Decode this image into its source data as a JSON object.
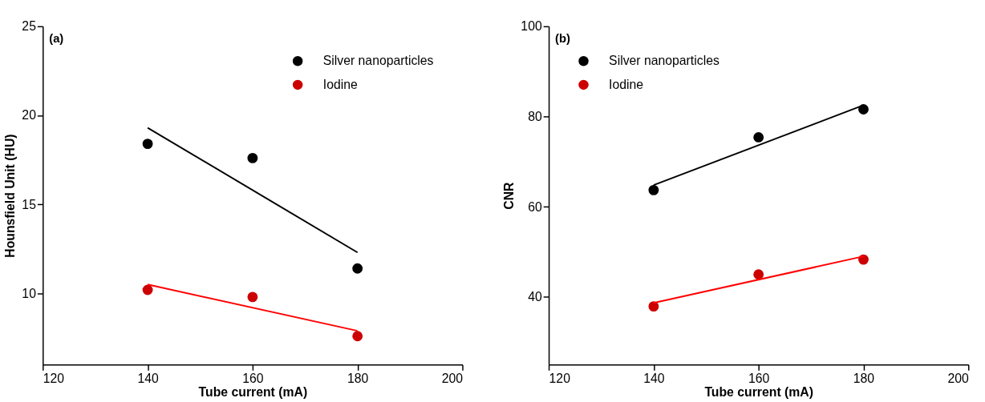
{
  "chart_data": [
    {
      "type": "scatter",
      "annotations": [
        "(a)"
      ],
      "xlabel": "Tube current (mA)",
      "ylabel": "Hounsfield Unit (HU)",
      "xlim": [
        120,
        200
      ],
      "xticks": [
        120,
        140,
        160,
        180,
        200
      ],
      "ylim": [
        6,
        25
      ],
      "yticks": [
        10,
        15,
        20,
        25
      ],
      "grid": false,
      "legend": "top right",
      "series": [
        {
          "name": "Silver nanoparticles",
          "color": "#000000",
          "marker": "circle",
          "x": [
            140,
            160,
            180
          ],
          "values": [
            18.4,
            17.6,
            11.4
          ]
        },
        {
          "name": "Iodine",
          "color": "#cc0000",
          "marker": "circle",
          "x": [
            140,
            160,
            180
          ],
          "values": [
            10.2,
            9.8,
            7.6
          ]
        },
        {
          "type": "line",
          "color": "#000000",
          "marker": "none",
          "line_style": "solid",
          "x": [
            140,
            180
          ],
          "values": [
            19.3,
            12.3
          ]
        },
        {
          "type": "line",
          "color": "#ff0000",
          "marker": "none",
          "line_style": "solid",
          "x": [
            140,
            180
          ],
          "values": [
            10.5,
            7.9
          ]
        }
      ]
    },
    {
      "type": "scatter",
      "annotations": [
        "(b)"
      ],
      "xlabel": "Tube current (mA)",
      "ylabel": "CNR",
      "xlim": [
        120,
        200
      ],
      "xticks": [
        120,
        140,
        160,
        180,
        200
      ],
      "ylim": [
        25,
        100
      ],
      "yticks": [
        40,
        60,
        80,
        100
      ],
      "grid": false,
      "legend": "top left",
      "series": [
        {
          "name": "Silver nanoparticles",
          "color": "#000000",
          "marker": "circle",
          "x": [
            140,
            160,
            180
          ],
          "values": [
            63.7,
            75.4,
            81.6
          ]
        },
        {
          "name": "Iodine",
          "color": "#cc0000",
          "marker": "circle",
          "x": [
            140,
            160,
            180
          ],
          "values": [
            37.9,
            45.0,
            48.3
          ]
        },
        {
          "type": "line",
          "color": "#000000",
          "marker": "none",
          "line_style": "solid",
          "x": [
            140,
            180
          ],
          "values": [
            64.8,
            82.5
          ]
        },
        {
          "type": "line",
          "color": "#ff0000",
          "marker": "none",
          "line_style": "solid",
          "x": [
            140,
            180
          ],
          "values": [
            38.7,
            49.0
          ]
        }
      ]
    }
  ]
}
